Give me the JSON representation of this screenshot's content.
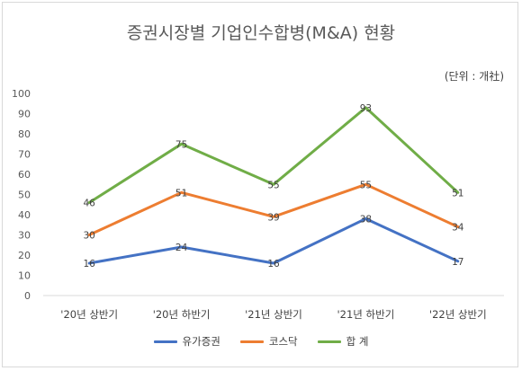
{
  "chart_data": {
    "type": "line",
    "title": "증권시장별 기업인수합병(M&A) 현황",
    "unit_note": "(단위 : 개社)",
    "categories": [
      "'20년 상반기",
      "'20년 하반기",
      "'21년 상반기",
      "'21년 하반기",
      "'22년 상반기"
    ],
    "ylim": [
      0,
      100
    ],
    "yticks": [
      0,
      10,
      20,
      30,
      40,
      50,
      60,
      70,
      80,
      90,
      100
    ],
    "grid": false,
    "legend_position": "bottom",
    "series": [
      {
        "name": "유가증권",
        "color": "#4472c4",
        "values": [
          16,
          24,
          16,
          38,
          17
        ]
      },
      {
        "name": "코스닥",
        "color": "#ed7d31",
        "values": [
          30,
          51,
          39,
          55,
          34
        ]
      },
      {
        "name": "합 계",
        "color": "#70ad47",
        "values": [
          46,
          75,
          55,
          93,
          51
        ]
      }
    ]
  }
}
